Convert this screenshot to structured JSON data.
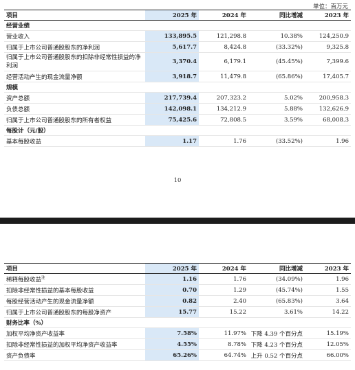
{
  "page1": {
    "unit_label": "单位：百万元",
    "headers": [
      "项目",
      "2025 年",
      "2024 年",
      "同比增减",
      "2023 年"
    ],
    "sections": [
      {
        "title": "经营业绩",
        "rows": [
          {
            "label": "营业收入",
            "y2025": "133,895.5",
            "y2024": "121,298.8",
            "change": "10.38%",
            "y2023": "124,250.9"
          },
          {
            "label": "归属于上市公司普通股股东的净利润",
            "y2025": "5,617.7",
            "y2024": "8,424.8",
            "change": "(33.32%)",
            "y2023": "9,325.8"
          },
          {
            "label": "归属于上市公司普通股股东的扣除非经常性损益的净利润",
            "y2025": "3,370.4",
            "y2024": "6,179.1",
            "change": "(45.45%)",
            "y2023": "7,399.6"
          },
          {
            "label": "经营活动产生的现金流量净额",
            "y2025": "3,918.7",
            "y2024": "11,479.8",
            "change": "(65.86%)",
            "y2023": "17,405.7"
          }
        ]
      },
      {
        "title": "规模",
        "rows": [
          {
            "label": "资产总额",
            "y2025": "217,739.4",
            "y2024": "207,323.2",
            "change": "5.02%",
            "y2023": "200,958.3"
          },
          {
            "label": "负债总额",
            "y2025": "142,098.1",
            "y2024": "134,212.9",
            "change": "5.88%",
            "y2023": "132,626.9"
          },
          {
            "label": "归属于上市公司普通股股东的所有者权益",
            "y2025": "75,425.6",
            "y2024": "72,808.5",
            "change": "3.59%",
            "y2023": "68,008.3"
          }
        ]
      },
      {
        "title": "每股计（元/股）",
        "rows": [
          {
            "label": "基本每股收益",
            "y2025": "1.17",
            "y2024": "1.76",
            "change": "(33.52%)",
            "y2023": "1.96"
          }
        ]
      }
    ],
    "page_number": "10"
  },
  "page2": {
    "headers": [
      "项目",
      "2025 年",
      "2024 年",
      "同比增减",
      "2023 年"
    ],
    "rows_top": [
      {
        "label": "稀释每股收益",
        "sup": "注",
        "y2025": "1.16",
        "y2024": "1.76",
        "change": "(34.09%)",
        "y2023": "1.96"
      },
      {
        "label": "扣除非经常性损益的基本每股收益",
        "y2025": "0.70",
        "y2024": "1.29",
        "change": "(45.74%)",
        "y2023": "1.55"
      },
      {
        "label": "每股经营活动产生的现金流量净额",
        "y2025": "0.82",
        "y2024": "2.40",
        "change": "(65.83%)",
        "y2023": "3.64"
      },
      {
        "label": "归属于上市公司普通股股东的每股净资产",
        "y2025": "15.77",
        "y2024": "15.22",
        "change": "3.61%",
        "y2023": "14.22"
      }
    ],
    "section_ratio": {
      "title": "财务比率（%）",
      "rows": [
        {
          "label": "加权平均净资产收益率",
          "y2025": "7.58%",
          "y2024": "11.97%",
          "change": "下降 4.39 个百分点",
          "y2023": "15.19%"
        },
        {
          "label": "扣除非经常性损益的加权平均净资产收益率",
          "y2025": "4.55%",
          "y2024": "8.78%",
          "change": "下降 4.23 个百分点",
          "y2023": "12.05%"
        },
        {
          "label": "资产负债率",
          "y2025": "65.26%",
          "y2024": "64.74%",
          "change": "上升 0.52 个百分点",
          "y2023": "66.00%"
        }
      ]
    }
  }
}
